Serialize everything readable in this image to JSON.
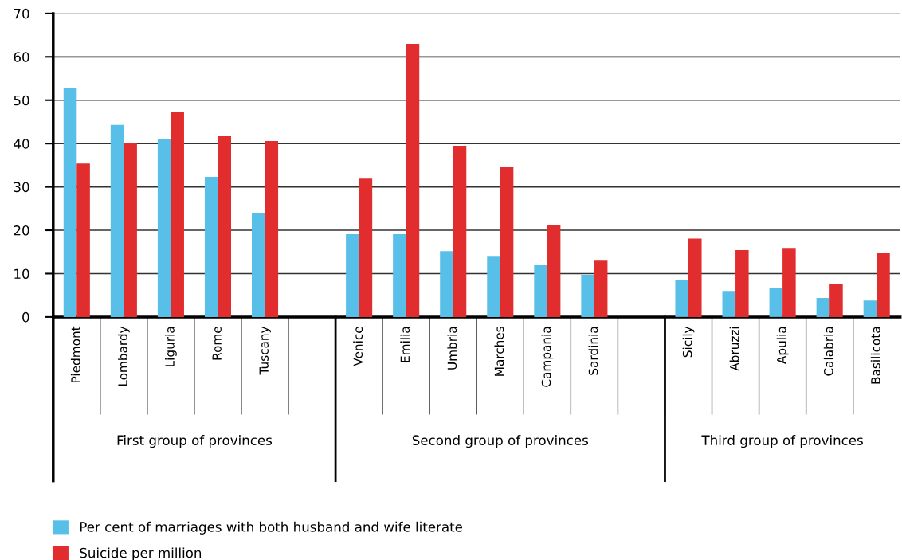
{
  "chart_data": {
    "type": "bar",
    "categories": [
      "Piedmont",
      "Lombardy",
      "Liguria",
      "Rome",
      "Tuscany",
      null,
      "Venice",
      "Emilia",
      "Umbria",
      "Marches",
      "Campania",
      "Sardinia",
      null,
      "Sicily",
      "Abruzzi",
      "Apulia",
      "Calabria",
      "Basilicota"
    ],
    "series": [
      {
        "name": "Per cent of marriages with both husband and wife literate",
        "color": "#58c0e8",
        "values": [
          52.9,
          44.3,
          41.0,
          32.3,
          24.0,
          null,
          19.1,
          19.1,
          15.2,
          14.1,
          11.9,
          9.7,
          null,
          8.6,
          6.0,
          6.6,
          4.4,
          3.8
        ]
      },
      {
        "name": "Suicide per million",
        "color": "#e12d2d",
        "values": [
          35.4,
          40.2,
          47.2,
          41.7,
          40.6,
          null,
          31.9,
          63.0,
          39.5,
          34.5,
          21.3,
          13.0,
          null,
          18.1,
          15.4,
          15.9,
          7.5,
          14.8
        ]
      }
    ],
    "ylim": [
      0,
      70
    ],
    "yticks": [
      0,
      10,
      20,
      30,
      40,
      50,
      60,
      70
    ],
    "grid": "y",
    "legend": "bottom left",
    "annotations": [
      "First group of provinces",
      "Second group of provinces",
      "Third group of provinces"
    ]
  }
}
